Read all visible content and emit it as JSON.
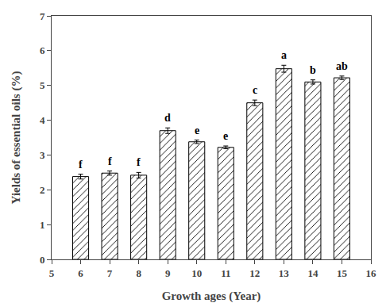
{
  "chart_data": {
    "type": "bar",
    "xlabel": "Growth ages (Year)",
    "ylabel": "Yields of essential oils (%)",
    "categories": [
      6,
      7,
      8,
      9,
      10,
      11,
      12,
      13,
      14,
      15
    ],
    "values": [
      2.38,
      2.48,
      2.42,
      3.7,
      3.38,
      3.22,
      4.5,
      5.48,
      5.1,
      5.22
    ],
    "errors": [
      0.07,
      0.06,
      0.08,
      0.08,
      0.05,
      0.04,
      0.08,
      0.1,
      0.06,
      0.05
    ],
    "annotations": [
      "f",
      "f",
      "f",
      "d",
      "e",
      "e",
      "c",
      "a",
      "b",
      "ab"
    ],
    "color": "white",
    "xlim": [
      5,
      16
    ],
    "xticks": [
      5,
      6,
      7,
      8,
      9,
      10,
      11,
      12,
      13,
      14,
      15,
      16
    ],
    "ylim": [
      0,
      7
    ],
    "yticks": [
      0,
      1,
      2,
      3,
      4,
      5,
      6,
      7
    ],
    "grid": false
  }
}
